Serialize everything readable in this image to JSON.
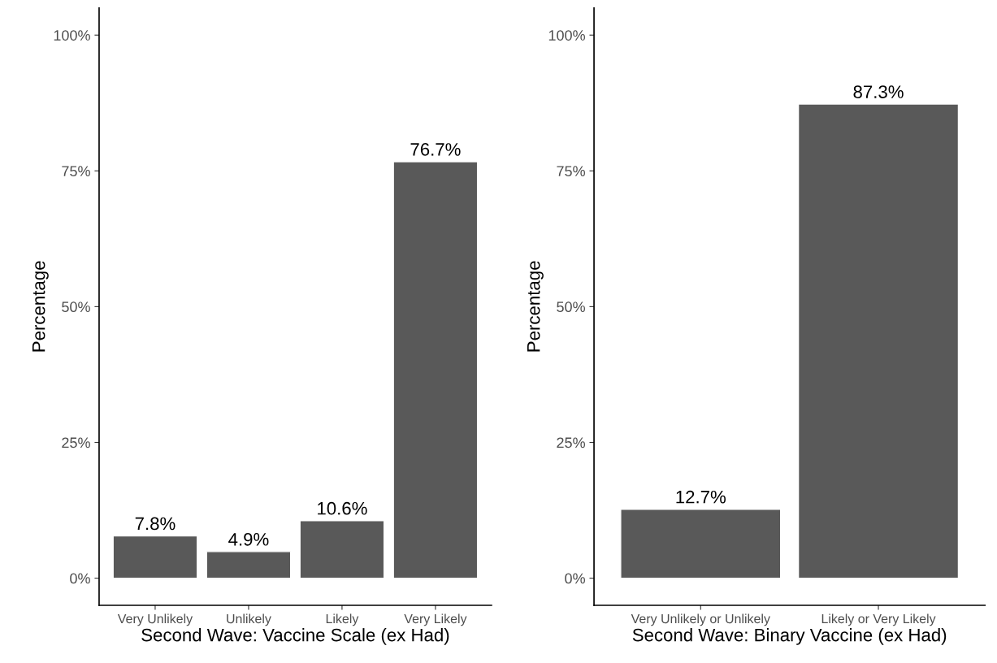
{
  "chart_data": [
    {
      "type": "bar",
      "xlabel": "Second Wave: Vaccine Scale (ex Had)",
      "ylabel": "Percentage",
      "categories": [
        "Very Unlikely",
        "Unlikely",
        "Likely",
        "Very Likely"
      ],
      "values": [
        7.8,
        4.9,
        10.6,
        76.7
      ],
      "value_labels": [
        "7.8%",
        "4.9%",
        "10.6%",
        "76.7%"
      ],
      "color": "#595959",
      "ylim": [
        -5,
        105
      ],
      "yticks": [
        {
          "value": 0,
          "label": "0%"
        },
        {
          "value": 25,
          "label": "25%"
        },
        {
          "value": 50,
          "label": "50%"
        },
        {
          "value": 75,
          "label": "75%"
        },
        {
          "value": 100,
          "label": "100%"
        }
      ],
      "grid": false,
      "legend": false
    },
    {
      "type": "bar",
      "xlabel": "Second Wave: Binary Vaccine (ex Had)",
      "ylabel": "Percentage",
      "categories": [
        "Very Unlikely or Unlikely",
        "Likely or Very Likely"
      ],
      "values": [
        12.7,
        87.3
      ],
      "value_labels": [
        "12.7%",
        "87.3%"
      ],
      "color": "#595959",
      "ylim": [
        -5,
        105
      ],
      "yticks": [
        {
          "value": 0,
          "label": "0%"
        },
        {
          "value": 25,
          "label": "25%"
        },
        {
          "value": 50,
          "label": "50%"
        },
        {
          "value": 75,
          "label": "75%"
        },
        {
          "value": 100,
          "label": "100%"
        }
      ],
      "grid": false,
      "legend": false
    }
  ]
}
